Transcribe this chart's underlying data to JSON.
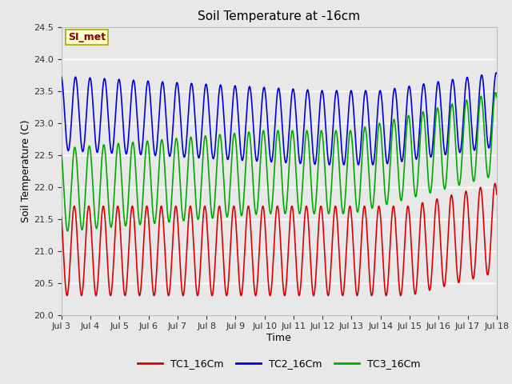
{
  "title": "Soil Temperature at -16cm",
  "xlabel": "Time",
  "ylabel": "Soil Temperature (C)",
  "ylim": [
    20.0,
    24.5
  ],
  "xlim_days": [
    3,
    18
  ],
  "annotation_text": "SI_met",
  "annotation_bg": "#ffffcc",
  "annotation_border": "#aaaa00",
  "annotation_text_color": "#880000",
  "plot_bg": "#e8e8e8",
  "grid_color": "#ffffff",
  "tc1_color": "#dd0000",
  "tc2_color": "#0000dd",
  "tc3_color": "#00aa00",
  "legend_labels": [
    "TC1_16Cm",
    "TC2_16Cm",
    "TC3_16Cm"
  ],
  "tick_labels": [
    "Jul 3",
    "Jul 4",
    "Jul 5",
    "Jul 6",
    "Jul 7",
    "Jul 8",
    "Jul 9",
    "Jul 10",
    "Jul 11",
    "Jul 12",
    "Jul 13",
    "Jul 14",
    "Jul 15",
    "Jul 16",
    "Jul 17",
    "Jul 18"
  ],
  "yticks": [
    20.0,
    20.5,
    21.0,
    21.5,
    22.0,
    22.5,
    23.0,
    23.5,
    24.0,
    24.5
  ]
}
